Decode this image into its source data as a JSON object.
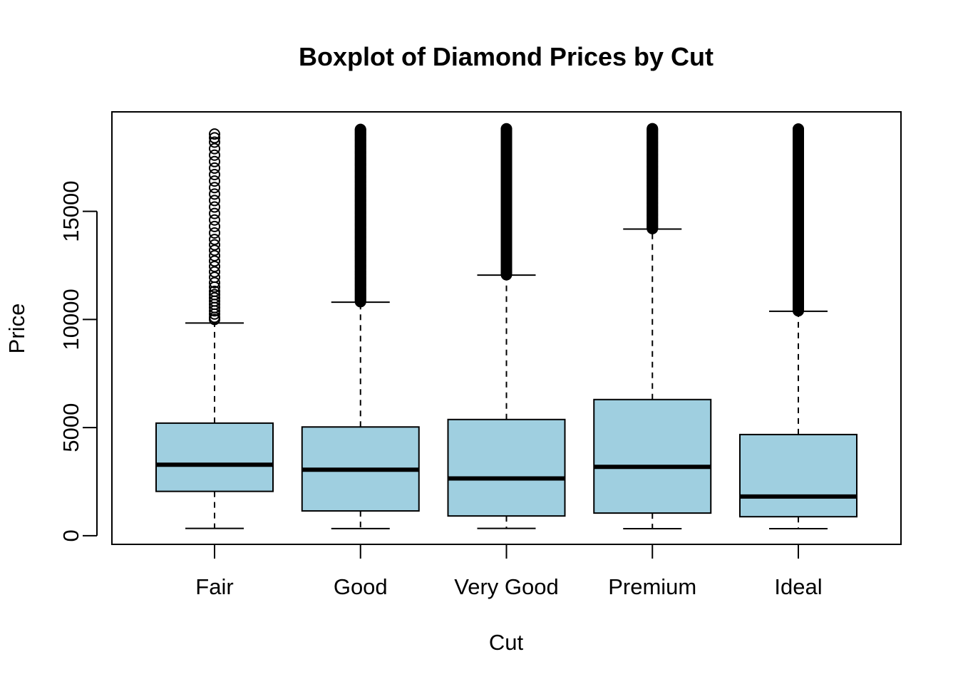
{
  "chart_data": {
    "type": "boxplot",
    "title": "Boxplot of Diamond Prices by Cut",
    "xlabel": "Cut",
    "ylabel": "Price",
    "ylim": [
      -400,
      19600
    ],
    "yticks": [
      0,
      5000,
      10000,
      15000
    ],
    "y_tick_labels": [
      "0",
      "5000",
      "10000",
      "15000"
    ],
    "categories": [
      "Fair",
      "Good",
      "Very Good",
      "Premium",
      "Ideal"
    ],
    "box_color": "#9fcfe0",
    "grid": false,
    "legend": "none",
    "boxes": [
      {
        "category": "Fair",
        "whisker_low": 337,
        "q1": 2050,
        "median": 3282,
        "q3": 5206,
        "whisker_high": 9836,
        "outliers": [
          10000,
          10100,
          10250,
          10400,
          10550,
          10700,
          10850,
          11000,
          11150,
          11300,
          11500,
          11700,
          11950,
          12200,
          12450,
          12700,
          12950,
          13200,
          13450,
          13700,
          14000,
          14300,
          14600,
          14900,
          15200,
          15500,
          15800,
          16100,
          16400,
          16700,
          17000,
          17300,
          17600,
          17900,
          18200,
          18400,
          18574
        ]
      },
      {
        "category": "Good",
        "whisker_low": 327,
        "q1": 1145,
        "median": 3050,
        "q3": 5028,
        "whisker_high": 10800,
        "outliers_range": [
          10800,
          18788
        ]
      },
      {
        "category": "Very Good",
        "whisker_low": 336,
        "q1": 912,
        "median": 2648,
        "q3": 5373,
        "whisker_high": 12050,
        "outliers_range": [
          12050,
          18818
        ]
      },
      {
        "category": "Premium",
        "whisker_low": 326,
        "q1": 1046,
        "median": 3185,
        "q3": 6296,
        "whisker_high": 14180,
        "outliers_range": [
          14180,
          18823
        ]
      },
      {
        "category": "Ideal",
        "whisker_low": 326,
        "q1": 878,
        "median": 1810,
        "q3": 4678,
        "whisker_high": 10380,
        "outliers_range": [
          10380,
          18806
        ]
      }
    ]
  }
}
